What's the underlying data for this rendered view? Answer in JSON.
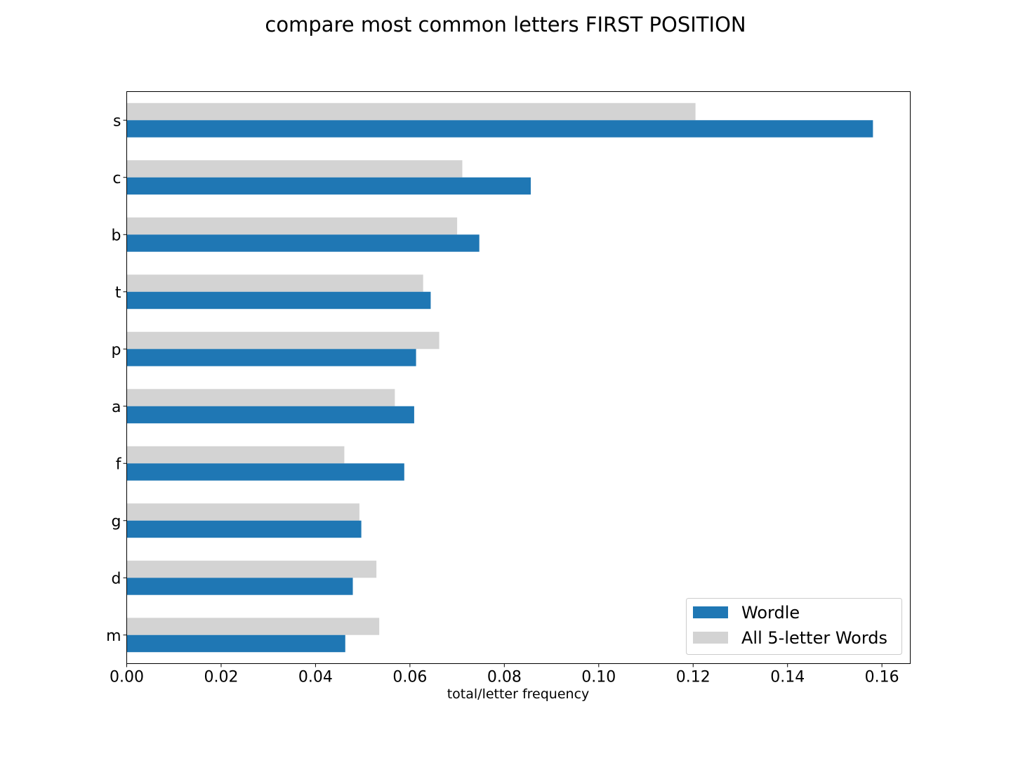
{
  "chart_data": {
    "type": "bar",
    "orientation": "horizontal",
    "title": "compare most common letters FIRST POSITION",
    "xlabel": "total/letter frequency",
    "ylabel": "",
    "categories": [
      "s",
      "c",
      "b",
      "t",
      "p",
      "a",
      "f",
      "g",
      "d",
      "m"
    ],
    "series": [
      {
        "name": "All 5-letter Words",
        "color": "#d3d3d3",
        "values": [
          0.1205,
          0.0711,
          0.07,
          0.0628,
          0.0662,
          0.0568,
          0.0461,
          0.0493,
          0.0529,
          0.0535
        ]
      },
      {
        "name": "Wordle",
        "color": "#1f77b4",
        "values": [
          0.1581,
          0.0856,
          0.0747,
          0.0644,
          0.0613,
          0.0609,
          0.0588,
          0.0497,
          0.0479,
          0.0463
        ]
      }
    ],
    "xlim": [
      0.0,
      0.166
    ],
    "xticks": [
      "0.00",
      "0.02",
      "0.04",
      "0.06",
      "0.08",
      "0.10",
      "0.12",
      "0.14",
      "0.16"
    ],
    "grid": false,
    "legend": {
      "placement": "lower-right",
      "entries": [
        "Wordle",
        "All 5-letter Words"
      ]
    }
  }
}
